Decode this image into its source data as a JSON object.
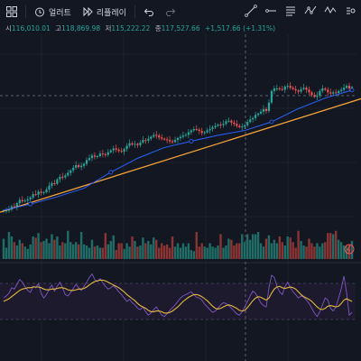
{
  "toolbar": {
    "alert_label": "얼러트",
    "replay_label": "리플레이"
  },
  "ohlc": {
    "open_label": "시",
    "open": "116,010.01",
    "high_label": "고",
    "high": "118,869.98",
    "low_label": "저",
    "low": "115,222.22",
    "close_label": "종",
    "close": "117,527.66",
    "change": "+1,517.66 (+1.31%)"
  },
  "colors": {
    "up": "#26a69a",
    "down": "#ef5350",
    "trendline": "#f7a23a",
    "ma": "#2962ff",
    "rsi_fast": "#7e57c2",
    "rsi_slow": "#e5b93b",
    "rsi_band": "#1e1a2e"
  },
  "icons": [
    "grid-icon",
    "alert-clock-icon",
    "replay-icon",
    "undo-icon",
    "redo-icon",
    "trendline-tool-icon",
    "horizontal-ray-tool-icon",
    "text-tool-icon",
    "parallel-channel-tool-icon",
    "pattern-tool-icon",
    "more-tools-icon",
    "lightning-icon"
  ],
  "chart_data": {
    "type": "candlestick",
    "closes": [
      47,
      47,
      48,
      53,
      52,
      58,
      63,
      61,
      62,
      64,
      67,
      72,
      71,
      76,
      74,
      75,
      79,
      85,
      89,
      88,
      95,
      99,
      98,
      101,
      105,
      109,
      113,
      117,
      114,
      116,
      119,
      125,
      128,
      132,
      130,
      131,
      135,
      134,
      133,
      137,
      140,
      143,
      141,
      139,
      138,
      142,
      147,
      151,
      149,
      150,
      148,
      152,
      156,
      155,
      158,
      161,
      164,
      163,
      160,
      158,
      157,
      156,
      154,
      153,
      156,
      159,
      161,
      163,
      164,
      168,
      171,
      173,
      172,
      170,
      167,
      168,
      171,
      173,
      176,
      178,
      180,
      179,
      181,
      185,
      186,
      183,
      181,
      178,
      176,
      177,
      179,
      184,
      188,
      190,
      195,
      197,
      200,
      204,
      201,
      214,
      232,
      236,
      236,
      235,
      234,
      239,
      240,
      237,
      235,
      233,
      231,
      235,
      237,
      234,
      230,
      226,
      223,
      225,
      232,
      236,
      234,
      230,
      228,
      230,
      229,
      232,
      234,
      237,
      240,
      236,
      238
    ],
    "volume": [
      18,
      10,
      24,
      20,
      15,
      12,
      17,
      14,
      11,
      9,
      13,
      20,
      19,
      23,
      15,
      16,
      18,
      14,
      22,
      17,
      20,
      12,
      15,
      14,
      25,
      15,
      13,
      15,
      13,
      24,
      13,
      12,
      10,
      17,
      11,
      12,
      10,
      10,
      23,
      13,
      16,
      21,
      8,
      14,
      14,
      9,
      14,
      11,
      20,
      16,
      11,
      12,
      19,
      14,
      16,
      13,
      19,
      17,
      10,
      14,
      12,
      13,
      10,
      20,
      11,
      14,
      10,
      14,
      11,
      14,
      8,
      7,
      24,
      11,
      14,
      11,
      10,
      14,
      11,
      10,
      12,
      22,
      10,
      12,
      18,
      17,
      12,
      14,
      14,
      22,
      15,
      22,
      17,
      22,
      22,
      24,
      14,
      11,
      18,
      21,
      14,
      17,
      14,
      20,
      15,
      12,
      20,
      19,
      15,
      10,
      25,
      16,
      12,
      11,
      18,
      14,
      11,
      14,
      11,
      14,
      15,
      23,
      23,
      22,
      25,
      17,
      15,
      12,
      11,
      13,
      16
    ],
    "rsi_fast": [
      0.55,
      0.58,
      0.62,
      0.7,
      0.68,
      0.75,
      0.82,
      0.78,
      0.71,
      0.66,
      0.63,
      0.72,
      0.7,
      0.76,
      0.62,
      0.55,
      0.6,
      0.68,
      0.74,
      0.65,
      0.72,
      0.78,
      0.7,
      0.6,
      0.58,
      0.63,
      0.69,
      0.75,
      0.7,
      0.66,
      0.72,
      0.78,
      0.85,
      0.9,
      0.82,
      0.79,
      0.83,
      0.77,
      0.72,
      0.68,
      0.7,
      0.73,
      0.69,
      0.64,
      0.6,
      0.55,
      0.5,
      0.53,
      0.48,
      0.45,
      0.4,
      0.38,
      0.42,
      0.35,
      0.3,
      0.33,
      0.38,
      0.42,
      0.36,
      0.3,
      0.28,
      0.32,
      0.37,
      0.41,
      0.45,
      0.5,
      0.55,
      0.58,
      0.6,
      0.62,
      0.64,
      0.6,
      0.56,
      0.55,
      0.52,
      0.46,
      0.42,
      0.38,
      0.34,
      0.36,
      0.4,
      0.45,
      0.48,
      0.47,
      0.44,
      0.4,
      0.36,
      0.32,
      0.3,
      0.35,
      0.42,
      0.5,
      0.58,
      0.65,
      0.62,
      0.55,
      0.48,
      0.44,
      0.42,
      0.7,
      0.88,
      0.85,
      0.72,
      0.64,
      0.6,
      0.72,
      0.78,
      0.7,
      0.64,
      0.6,
      0.55,
      0.58,
      0.56,
      0.52,
      0.47,
      0.4,
      0.33,
      0.28,
      0.35,
      0.45,
      0.55,
      0.52,
      0.4,
      0.36,
      0.42,
      0.55,
      0.68,
      0.87,
      0.62,
      0.3,
      0.34
    ],
    "rsi_slow": [
      0.5,
      0.52,
      0.54,
      0.57,
      0.6,
      0.63,
      0.66,
      0.68,
      0.69,
      0.7,
      0.7,
      0.71,
      0.71,
      0.71,
      0.7,
      0.68,
      0.67,
      0.67,
      0.68,
      0.68,
      0.69,
      0.7,
      0.7,
      0.69,
      0.67,
      0.66,
      0.66,
      0.67,
      0.68,
      0.68,
      0.69,
      0.71,
      0.74,
      0.77,
      0.79,
      0.8,
      0.81,
      0.81,
      0.8,
      0.78,
      0.76,
      0.74,
      0.72,
      0.7,
      0.67,
      0.64,
      0.6,
      0.57,
      0.54,
      0.51,
      0.47,
      0.44,
      0.42,
      0.4,
      0.37,
      0.35,
      0.35,
      0.36,
      0.36,
      0.35,
      0.33,
      0.33,
      0.34,
      0.36,
      0.39,
      0.42,
      0.46,
      0.5,
      0.53,
      0.56,
      0.58,
      0.6,
      0.6,
      0.59,
      0.57,
      0.54,
      0.51,
      0.47,
      0.43,
      0.4,
      0.39,
      0.4,
      0.42,
      0.44,
      0.45,
      0.44,
      0.42,
      0.4,
      0.37,
      0.36,
      0.37,
      0.41,
      0.46,
      0.51,
      0.55,
      0.57,
      0.56,
      0.54,
      0.52,
      0.55,
      0.62,
      0.68,
      0.71,
      0.72,
      0.7,
      0.69,
      0.7,
      0.71,
      0.7,
      0.68,
      0.64,
      0.6,
      0.57,
      0.55,
      0.53,
      0.5,
      0.46,
      0.42,
      0.39,
      0.38,
      0.4,
      0.43,
      0.44,
      0.43,
      0.42,
      0.43,
      0.47,
      0.52,
      0.54,
      0.52,
      0.5
    ]
  }
}
